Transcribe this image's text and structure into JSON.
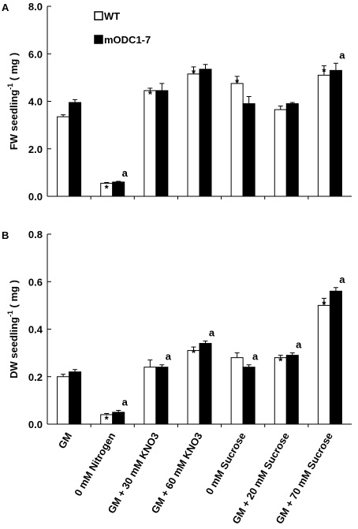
{
  "chart_data": [
    {
      "type": "bar",
      "panel_label": "A",
      "y_label": "FW seedling",
      "y_label_sup": "-1",
      "y_label_unit": " ( mg )",
      "categories": [
        null,
        null,
        null,
        null,
        null,
        null,
        null
      ],
      "series": [
        {
          "name": "WT",
          "color": "#ffffff",
          "values": [
            3.35,
            0.55,
            4.45,
            5.15,
            4.75,
            3.65,
            5.1
          ],
          "errors": [
            0.08,
            0.03,
            0.1,
            0.3,
            0.3,
            0.15,
            0.4
          ],
          "annotations": [
            null,
            "*",
            "*",
            "*",
            "*",
            null,
            "*"
          ]
        },
        {
          "name": "mODC1-7",
          "color": "#000000",
          "values": [
            3.95,
            0.6,
            4.45,
            5.35,
            3.9,
            3.9,
            5.3
          ],
          "errors": [
            0.12,
            0.03,
            0.3,
            0.2,
            0.3,
            0.05,
            0.3
          ],
          "annotations": [
            null,
            "a",
            null,
            null,
            null,
            null,
            "a"
          ]
        }
      ],
      "ylim": [
        0,
        8
      ],
      "yticks": [
        {
          "value": 0,
          "label": "0.0"
        },
        {
          "value": 2,
          "label": "2.0"
        },
        {
          "value": 4,
          "label": "4.0"
        },
        {
          "value": 6,
          "label": "6.0"
        },
        {
          "value": 8,
          "label": "8.0"
        }
      ],
      "legend": "top-left"
    },
    {
      "type": "bar",
      "panel_label": "B",
      "y_label": "DW seedling",
      "y_label_sup": "-1",
      "y_label_unit": " ( mg )",
      "categories": [
        "GM",
        "0 mM Nitrogen",
        "GM + 30 mM KNO3",
        "GM + 60 mM KNO3",
        "0 mM Sucrose",
        "GM + 20 mM Sucrose",
        "GM + 70 mM Sucrose"
      ],
      "series": [
        {
          "name": "WT",
          "color": "#ffffff",
          "values": [
            0.2,
            0.04,
            0.24,
            0.31,
            0.28,
            0.28,
            0.5
          ],
          "errors": [
            0.01,
            0.005,
            0.03,
            0.015,
            0.02,
            0.01,
            0.03
          ],
          "annotations": [
            null,
            "*",
            null,
            "*",
            null,
            "*",
            "*"
          ]
        },
        {
          "name": "mODC1-7",
          "color": "#000000",
          "values": [
            0.22,
            0.05,
            0.24,
            0.34,
            0.24,
            0.29,
            0.56
          ],
          "errors": [
            0.01,
            0.008,
            0.01,
            0.01,
            0.01,
            0.01,
            0.015
          ],
          "annotations": [
            null,
            "a",
            "a",
            "a",
            "a",
            "a",
            "a"
          ]
        }
      ],
      "ylim": [
        0,
        0.8
      ],
      "yticks": [
        {
          "value": 0,
          "label": "0.0"
        },
        {
          "value": 0.2,
          "label": "0.2"
        },
        {
          "value": 0.4,
          "label": "0.4"
        },
        {
          "value": 0.6,
          "label": "0.6"
        },
        {
          "value": 0.8,
          "label": "0.8"
        }
      ]
    }
  ]
}
